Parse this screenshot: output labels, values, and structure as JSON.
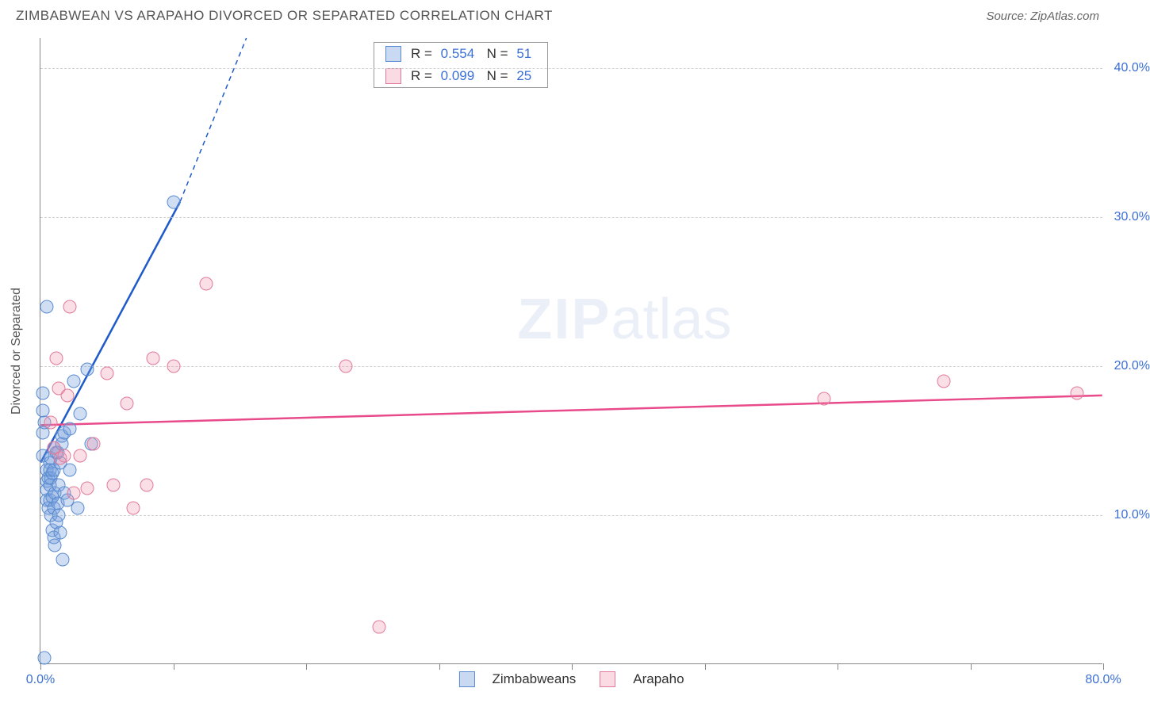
{
  "header": {
    "title": "ZIMBABWEAN VS ARAPAHO DIVORCED OR SEPARATED CORRELATION CHART",
    "source": "Source: ZipAtlas.com"
  },
  "chart": {
    "type": "scatter",
    "y_axis_title": "Divorced or Separated",
    "xlim": [
      0,
      80
    ],
    "ylim": [
      0,
      42
    ],
    "x_ticks": [
      0,
      10,
      20,
      30,
      40,
      50,
      60,
      70,
      80
    ],
    "x_tick_labels": {
      "0": "0.0%",
      "80": "80.0%"
    },
    "y_ticks": [
      10,
      20,
      30,
      40
    ],
    "y_tick_labels": {
      "10": "10.0%",
      "20": "20.0%",
      "30": "30.0%",
      "40": "40.0%"
    },
    "background_color": "#ffffff",
    "grid_color": "#d0d0d0",
    "axis_color": "#888888",
    "tick_label_color": "#3b6fd6",
    "axis_title_color": "#555555",
    "marker_radius": 8.5,
    "series": [
      {
        "name": "Zimbabweans",
        "color_fill": "rgba(120,160,220,0.35)",
        "color_stroke": "#5a8bd0",
        "line_color": "#1e5ac8",
        "line_width": 2.5,
        "trend": {
          "x1": 0,
          "y1": 13.5,
          "x2": 10.5,
          "y2": 31,
          "dash_x2": 15.5,
          "dash_y2": 42
        },
        "points": [
          [
            0.3,
            0.4
          ],
          [
            0.2,
            18.2
          ],
          [
            0.2,
            17.0
          ],
          [
            0.2,
            15.5
          ],
          [
            0.2,
            14.0
          ],
          [
            0.3,
            16.2
          ],
          [
            0.5,
            24.0
          ],
          [
            0.5,
            13.0
          ],
          [
            0.5,
            12.3
          ],
          [
            0.5,
            11.7
          ],
          [
            0.5,
            11.0
          ],
          [
            0.6,
            10.5
          ],
          [
            0.6,
            12.5
          ],
          [
            0.7,
            13.5
          ],
          [
            0.7,
            12.0
          ],
          [
            0.7,
            13.0
          ],
          [
            0.7,
            11.0
          ],
          [
            0.8,
            10.0
          ],
          [
            0.8,
            12.5
          ],
          [
            0.8,
            13.8
          ],
          [
            0.9,
            11.2
          ],
          [
            0.9,
            12.8
          ],
          [
            0.9,
            9.0
          ],
          [
            1.0,
            8.5
          ],
          [
            1.0,
            10.5
          ],
          [
            1.0,
            13.0
          ],
          [
            1.0,
            14.5
          ],
          [
            1.1,
            11.5
          ],
          [
            1.1,
            8.0
          ],
          [
            1.2,
            9.5
          ],
          [
            1.2,
            14.2
          ],
          [
            1.3,
            14.2
          ],
          [
            1.3,
            10.8
          ],
          [
            1.4,
            10.0
          ],
          [
            1.4,
            12.0
          ],
          [
            1.5,
            8.8
          ],
          [
            1.5,
            13.5
          ],
          [
            1.6,
            14.8
          ],
          [
            1.6,
            15.3
          ],
          [
            1.7,
            7.0
          ],
          [
            1.8,
            11.5
          ],
          [
            1.8,
            15.5
          ],
          [
            2.0,
            11.0
          ],
          [
            2.2,
            13.0
          ],
          [
            2.2,
            15.8
          ],
          [
            2.5,
            19.0
          ],
          [
            2.8,
            10.5
          ],
          [
            3.0,
            16.8
          ],
          [
            3.5,
            19.8
          ],
          [
            3.8,
            14.8
          ],
          [
            10.0,
            31.0
          ]
        ]
      },
      {
        "name": "Arapaho",
        "color_fill": "rgba(240,150,175,0.30)",
        "color_stroke": "#e27a9a",
        "line_color": "#e84a8a",
        "line_width": 2.5,
        "trend": {
          "x1": 0,
          "y1": 16.0,
          "x2": 80,
          "y2": 18.0
        },
        "points": [
          [
            0.8,
            16.2
          ],
          [
            1.0,
            14.5
          ],
          [
            1.2,
            20.5
          ],
          [
            1.4,
            18.5
          ],
          [
            1.5,
            13.8
          ],
          [
            1.8,
            14.0
          ],
          [
            2.0,
            18.0
          ],
          [
            2.2,
            24.0
          ],
          [
            2.5,
            11.5
          ],
          [
            3.0,
            14.0
          ],
          [
            3.5,
            11.8
          ],
          [
            4.0,
            14.8
          ],
          [
            5.0,
            19.5
          ],
          [
            5.5,
            12.0
          ],
          [
            6.5,
            17.5
          ],
          [
            7.0,
            10.5
          ],
          [
            8.0,
            12.0
          ],
          [
            8.5,
            20.5
          ],
          [
            10.0,
            20.0
          ],
          [
            12.5,
            25.5
          ],
          [
            23.0,
            20.0
          ],
          [
            25.5,
            2.5
          ],
          [
            59.0,
            17.8
          ],
          [
            68.0,
            19.0
          ],
          [
            78.0,
            18.2
          ]
        ]
      }
    ],
    "stats_legend": [
      {
        "swatch": "blue",
        "r": "0.554",
        "n": "51"
      },
      {
        "swatch": "pink",
        "r": "0.099",
        "n": "25"
      }
    ],
    "bottom_legend": [
      {
        "swatch": "blue",
        "label": "Zimbabweans"
      },
      {
        "swatch": "pink",
        "label": "Arapaho"
      }
    ],
    "watermark": {
      "bold": "ZIP",
      "rest": "atlas"
    }
  }
}
